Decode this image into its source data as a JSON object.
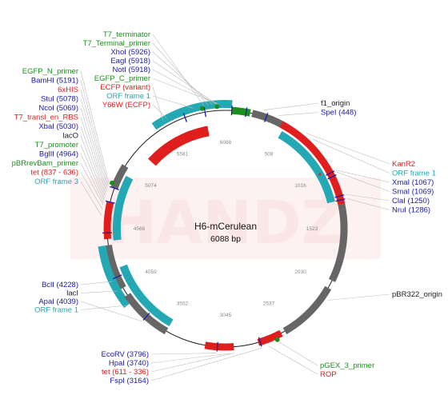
{
  "plasmid": {
    "name": "H6-mCerulean",
    "size_label": "6088 bp",
    "watermark": "HANDZ"
  },
  "colors": {
    "enzyme": "#1a1aa6",
    "primer": "#1e8f1e",
    "red_feature": "#e01e1e",
    "orf": "#23a8b4",
    "backbone": "#666666",
    "watermark": "#fbe6e6"
  },
  "ticks": [
    "6088",
    "508",
    "1016",
    "1523",
    "2030",
    "2537",
    "3045",
    "3552",
    "4059",
    "4566",
    "5074",
    "5581"
  ],
  "labels": {
    "top": [
      {
        "text": "T7_terminator",
        "color": "primer"
      },
      {
        "text": "T7_Terminal_primer",
        "color": "primer"
      },
      {
        "text": "XhoI (5926)",
        "color": "enzyme"
      },
      {
        "text": "EagI (5918)",
        "color": "enzyme"
      },
      {
        "text": "NotI (5918)",
        "color": "enzyme"
      },
      {
        "text": "EGFP_C_primer",
        "color": "primer"
      },
      {
        "text": "ECFP (variant)",
        "color": "red_feature"
      },
      {
        "text": "ORF frame 1",
        "color": "orf"
      },
      {
        "text": "Y66W (ECFP)",
        "color": "red_feature"
      }
    ],
    "left": [
      {
        "text": "EGFP_N_primer",
        "color": "primer"
      },
      {
        "text": "BamHI (5191)",
        "color": "enzyme"
      },
      {
        "text": "6xHIS",
        "color": "red_feature"
      },
      {
        "text": "StuI (5078)",
        "color": "enzyme"
      },
      {
        "text": "NcoI (5069)",
        "color": "enzyme"
      },
      {
        "text": "T7_transl_en_RBS",
        "color": "red_feature"
      },
      {
        "text": "XbaI (5030)",
        "color": "enzyme"
      },
      {
        "text": "lacO",
        "color": "text"
      },
      {
        "text": "T7_promoter",
        "color": "primer"
      },
      {
        "text": "BglII (4964)",
        "color": "enzyme"
      },
      {
        "text": "pBRrevBam_primer",
        "color": "primer"
      },
      {
        "text": "tet (837 - 636)",
        "color": "red_feature"
      },
      {
        "text": "ORF frame 3",
        "color": "orf"
      }
    ],
    "right_top": [
      {
        "text": "f1_origin",
        "color": "text"
      },
      {
        "text": "SpeI (448)",
        "color": "enzyme"
      }
    ],
    "right": [
      {
        "text": "KanR2",
        "color": "red_feature"
      },
      {
        "text": "ORF frame 1",
        "color": "orf"
      },
      {
        "text": "XmaI (1067)",
        "color": "enzyme"
      },
      {
        "text": "SmaI (1069)",
        "color": "enzyme"
      },
      {
        "text": "ClaI (1250)",
        "color": "enzyme"
      },
      {
        "text": "NruI (1286)",
        "color": "enzyme"
      }
    ],
    "right_mid": [
      {
        "text": "pBR322_origin",
        "color": "text"
      }
    ],
    "left_low": [
      {
        "text": "BclI (4228)",
        "color": "enzyme"
      },
      {
        "text": "lacI",
        "color": "text"
      },
      {
        "text": "ApaI (4039)",
        "color": "enzyme"
      },
      {
        "text": "ORF frame 1",
        "color": "orf"
      }
    ],
    "bottom_left": [
      {
        "text": "EcoRV (3796)",
        "color": "enzyme"
      },
      {
        "text": "HpaI (3740)",
        "color": "enzyme"
      },
      {
        "text": "tet (611 - 336)",
        "color": "red_feature"
      },
      {
        "text": "FspI (3164)",
        "color": "enzyme"
      }
    ],
    "bottom_right": [
      {
        "text": "pGEX_3_primer",
        "color": "primer"
      },
      {
        "text": "ROP",
        "color": "red_feature"
      }
    ]
  }
}
